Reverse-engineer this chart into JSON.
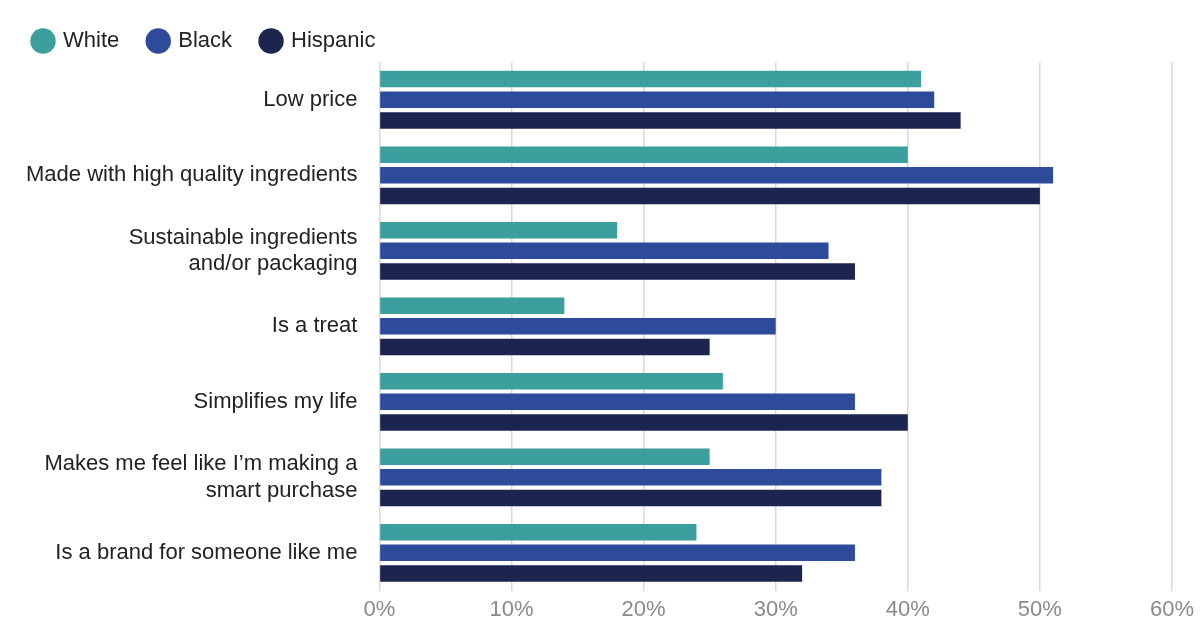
{
  "chart_data": {
    "type": "bar",
    "orientation": "horizontal",
    "categories": [
      "Low price",
      "Made with high quality ingredients",
      "Sustainable ingredients\nand/or packaging",
      "Is a treat",
      "Simplifies my life",
      "Makes me feel like I’m making a\nsmart purchase",
      "Is a brand for someone like me"
    ],
    "series": [
      {
        "name": "White",
        "color": "#3d9e9e",
        "values": [
          41,
          40,
          18,
          14,
          26,
          25,
          24
        ]
      },
      {
        "name": "Black",
        "color": "#2e4a9a",
        "values": [
          42,
          51,
          34,
          30,
          36,
          38,
          36
        ]
      },
      {
        "name": "Hispanic",
        "color": "#1b2550",
        "values": [
          44,
          50,
          36,
          25,
          40,
          38,
          32
        ]
      }
    ],
    "xlim": [
      0,
      60
    ],
    "xticks": [
      {
        "value": 0,
        "label": "0%"
      },
      {
        "value": 10,
        "label": "10%"
      },
      {
        "value": 20,
        "label": "20%"
      },
      {
        "value": 30,
        "label": "30%"
      },
      {
        "value": 40,
        "label": "40%"
      },
      {
        "value": 50,
        "label": "50%"
      },
      {
        "value": 60,
        "label": "60%"
      }
    ],
    "grid": "x",
    "legend": "top left"
  }
}
